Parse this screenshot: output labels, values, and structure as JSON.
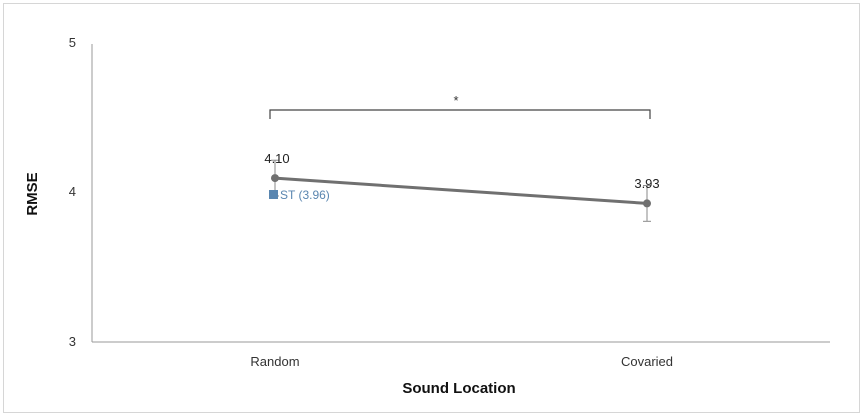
{
  "chart_data": {
    "type": "line",
    "title": "",
    "xlabel": "Sound Location",
    "ylabel": "RMSE",
    "categories": [
      "Random",
      "Covaried"
    ],
    "series": [
      {
        "values": [
          4.1,
          3.93
        ],
        "error": [
          0.12,
          0.12
        ],
        "color": "#707070"
      }
    ],
    "data_labels": [
      "4.10",
      "3.93"
    ],
    "ylim": [
      3,
      5
    ],
    "yticks": [
      "3",
      "4",
      "5"
    ],
    "grid": false,
    "significance": {
      "label": "*",
      "between": [
        "Random",
        "Covaried"
      ]
    },
    "reference": {
      "label": "ST (3.96)",
      "value": 3.96,
      "color": "#5a86b0"
    }
  }
}
